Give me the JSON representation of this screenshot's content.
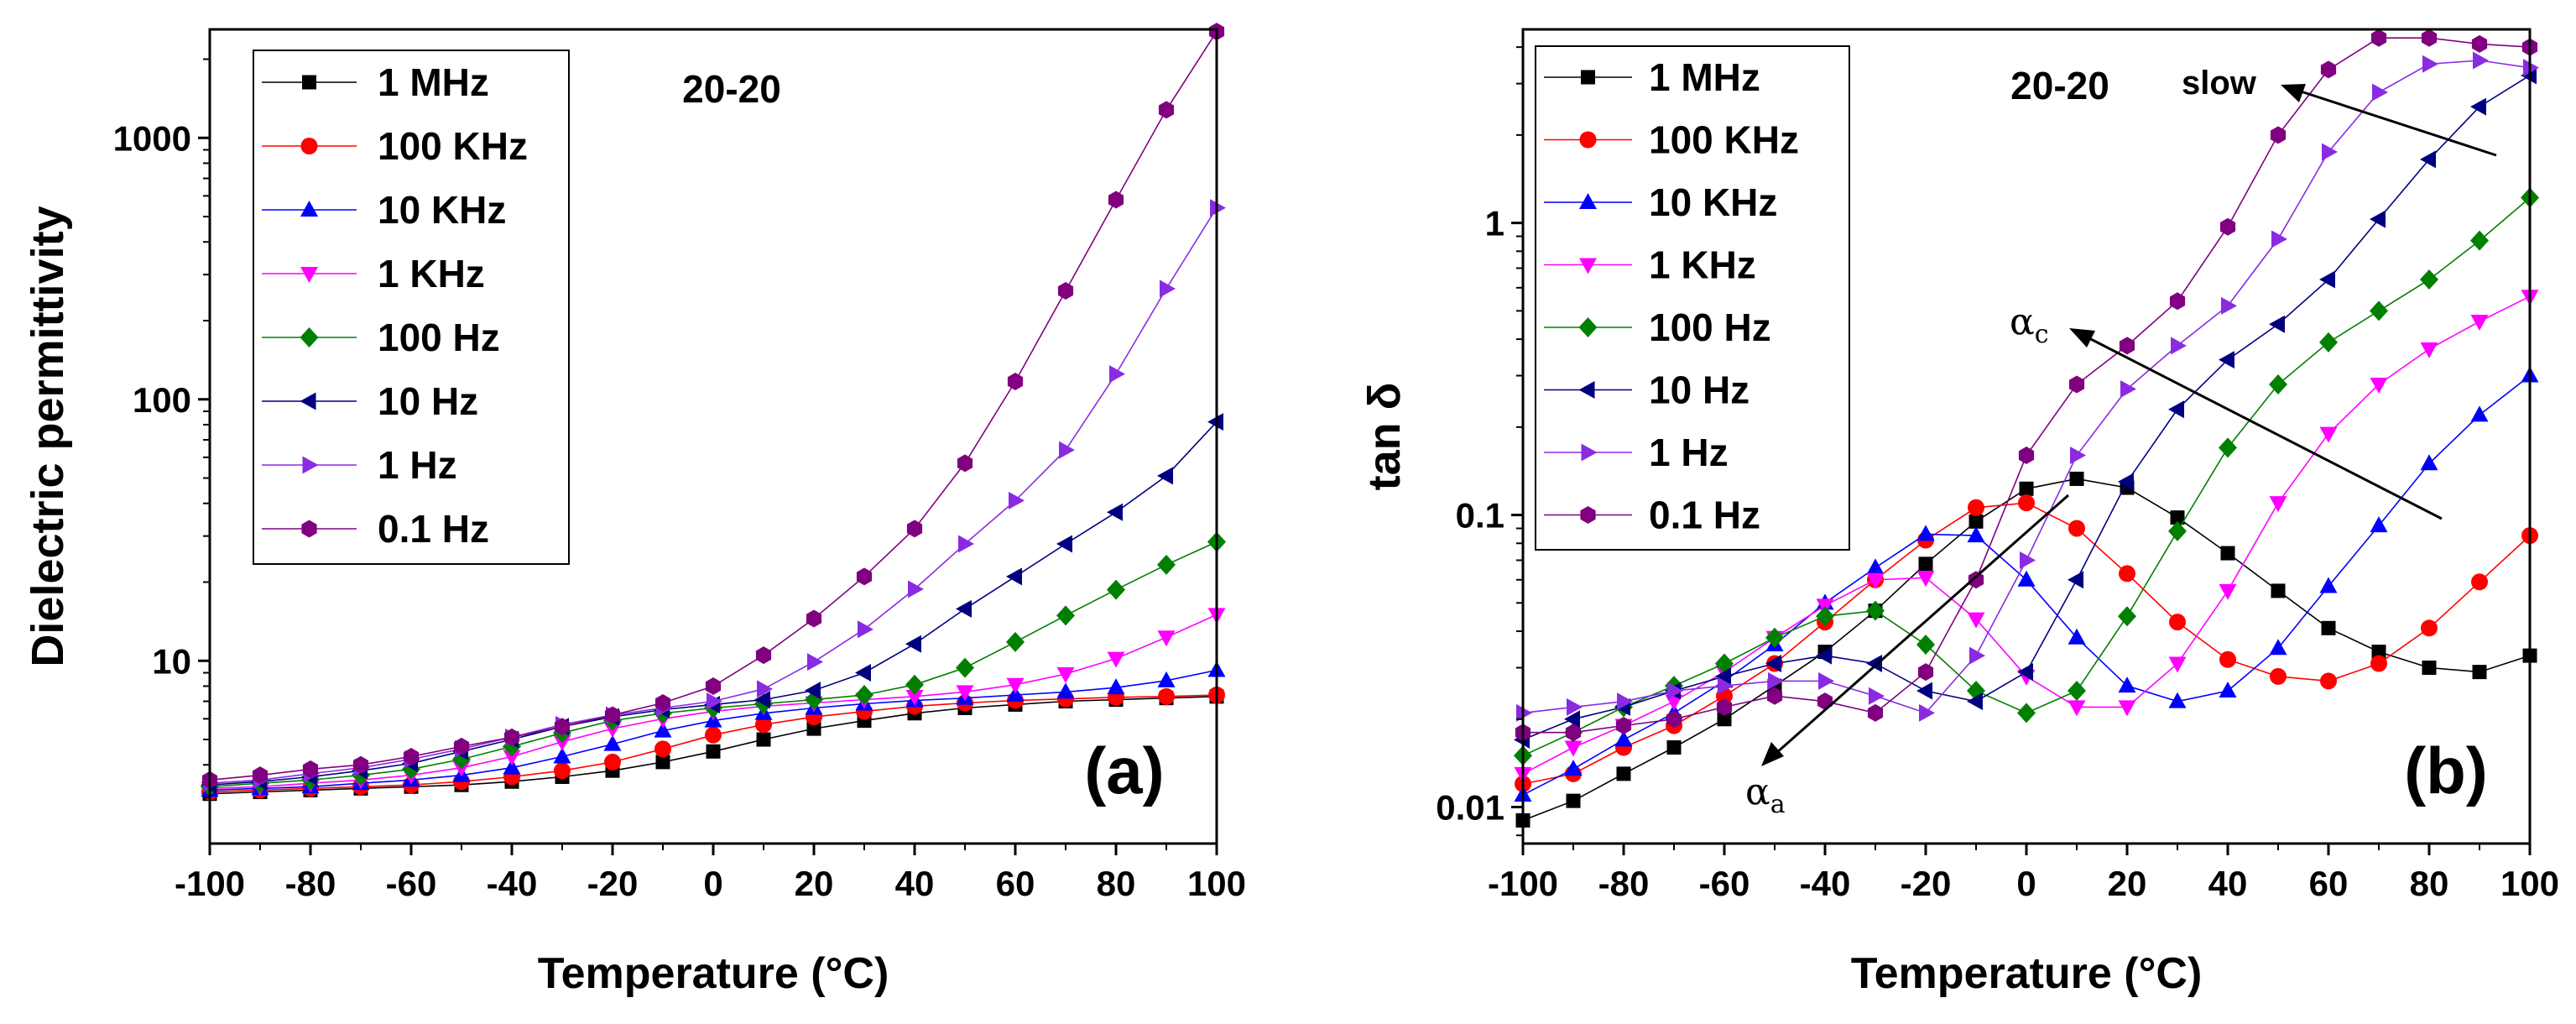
{
  "series_styles": [
    {
      "name": "1 MHz",
      "color": "#000000",
      "marker": "square"
    },
    {
      "name": "100 KHz",
      "color": "#ff0000",
      "marker": "circle"
    },
    {
      "name": "10 KHz",
      "color": "#0000ff",
      "marker": "triangle-up"
    },
    {
      "name": "1 KHz",
      "color": "#ff00ff",
      "marker": "triangle-down"
    },
    {
      "name": "100 Hz",
      "color": "#008000",
      "marker": "diamond"
    },
    {
      "name": "10 Hz",
      "color": "#000080",
      "marker": "triangle-left"
    },
    {
      "name": "1 Hz",
      "color": "#8a2be2",
      "marker": "triangle-right"
    },
    {
      "name": "0.1 Hz",
      "color": "#800080",
      "marker": "hexagon"
    }
  ],
  "chart_data": [
    {
      "type": "line",
      "panel_label": "(a)",
      "annotation": "20-20",
      "xlabel": "Temperature (°C)",
      "ylabel": "Dielectric permittivity",
      "yscale": "log",
      "xlim": [
        -100,
        100
      ],
      "ylim": [
        2,
        2600
      ],
      "xticks": [
        -100,
        -80,
        -60,
        -40,
        -20,
        0,
        20,
        40,
        60,
        80,
        100
      ],
      "xtick_labels": [
        "-100",
        "-80",
        "-60",
        "-40",
        "-20",
        "0",
        "20",
        "40",
        "60",
        "80",
        "100"
      ],
      "yticks": [
        10,
        100,
        1000
      ],
      "ytick_labels": [
        "10",
        "100",
        "1000"
      ],
      "legend_position": "top-left",
      "x": [
        -100,
        -90,
        -80,
        -70,
        -60,
        -50,
        -40,
        -30,
        -20,
        -10,
        0,
        10,
        20,
        30,
        40,
        50,
        60,
        70,
        80,
        90,
        100
      ],
      "series": [
        {
          "name": "1 MHz",
          "values": [
            3.1,
            3.15,
            3.2,
            3.25,
            3.3,
            3.35,
            3.45,
            3.6,
            3.8,
            4.1,
            4.5,
            5.0,
            5.5,
            5.9,
            6.3,
            6.6,
            6.8,
            7.0,
            7.1,
            7.2,
            7.3
          ]
        },
        {
          "name": "100 KHz",
          "values": [
            3.15,
            3.2,
            3.25,
            3.3,
            3.35,
            3.45,
            3.6,
            3.8,
            4.1,
            4.6,
            5.2,
            5.7,
            6.1,
            6.4,
            6.7,
            6.9,
            7.05,
            7.15,
            7.25,
            7.3,
            7.4
          ]
        },
        {
          "name": "10 KHz",
          "values": [
            3.2,
            3.25,
            3.3,
            3.4,
            3.5,
            3.65,
            3.9,
            4.3,
            4.8,
            5.4,
            5.9,
            6.3,
            6.6,
            6.85,
            7.05,
            7.2,
            7.4,
            7.6,
            7.9,
            8.4,
            9.2
          ]
        },
        {
          "name": "1 KHz",
          "values": [
            3.25,
            3.3,
            3.4,
            3.5,
            3.65,
            3.9,
            4.3,
            4.9,
            5.5,
            6.0,
            6.4,
            6.7,
            6.9,
            7.1,
            7.3,
            7.6,
            8.1,
            8.9,
            10.2,
            12.3,
            15.0
          ]
        },
        {
          "name": "100 Hz",
          "values": [
            3.3,
            3.4,
            3.5,
            3.65,
            3.85,
            4.2,
            4.7,
            5.3,
            5.9,
            6.3,
            6.6,
            6.85,
            7.1,
            7.4,
            8.1,
            9.4,
            11.8,
            14.9,
            18.7,
            23.3,
            28.5
          ]
        },
        {
          "name": "10 Hz",
          "values": [
            3.35,
            3.45,
            3.6,
            3.8,
            4.05,
            4.5,
            5.0,
            5.6,
            6.1,
            6.5,
            6.8,
            7.1,
            7.7,
            9.0,
            11.6,
            15.8,
            21.0,
            28.0,
            37.0,
            51.0,
            82.0
          ]
        },
        {
          "name": "1 Hz",
          "values": [
            3.4,
            3.5,
            3.7,
            3.9,
            4.2,
            4.6,
            5.1,
            5.7,
            6.2,
            6.6,
            7.0,
            7.8,
            9.9,
            13.2,
            18.8,
            28.0,
            41.0,
            64.0,
            125.0,
            265.0,
            540.0
          ]
        },
        {
          "name": "0.1 Hz",
          "values": [
            3.5,
            3.65,
            3.85,
            4.0,
            4.3,
            4.7,
            5.1,
            5.6,
            6.2,
            6.9,
            8.0,
            10.5,
            14.5,
            21.0,
            32.0,
            57.0,
            117.0,
            260.0,
            580.0,
            1280.0,
            2550.0
          ]
        }
      ]
    },
    {
      "type": "line",
      "panel_label": "(b)",
      "annotation": "20-20",
      "xlabel": "Temperature (°C)",
      "ylabel": "tan δ",
      "yscale": "log",
      "xlim": [
        -100,
        100
      ],
      "ylim": [
        0.0075,
        4.6
      ],
      "xticks": [
        -100,
        -80,
        -60,
        -40,
        -20,
        0,
        20,
        40,
        60,
        80,
        100
      ],
      "xtick_labels": [
        "-100",
        "-80",
        "-60",
        "-40",
        "-20",
        "0",
        "20",
        "40",
        "60",
        "80",
        "100"
      ],
      "yticks": [
        0.01,
        0.1,
        1
      ],
      "ytick_labels": [
        "0.01",
        "0.1",
        "1"
      ],
      "legend_position": "top-left",
      "arrow_labels": {
        "slow": "slow",
        "alpha_c_base": "α",
        "alpha_c_sub": "c",
        "alpha_a_base": "α",
        "alpha_a_sub": "a"
      },
      "x": [
        -100,
        -90,
        -80,
        -70,
        -60,
        -50,
        -40,
        -30,
        -20,
        -10,
        0,
        10,
        20,
        30,
        40,
        50,
        60,
        70,
        80,
        90,
        100
      ],
      "series": [
        {
          "name": "1 MHz",
          "values": [
            0.009,
            0.0105,
            0.013,
            0.016,
            0.02,
            0.026,
            0.034,
            0.047,
            0.068,
            0.095,
            0.123,
            0.133,
            0.124,
            0.098,
            0.074,
            0.055,
            0.041,
            0.034,
            0.03,
            0.029,
            0.033
          ]
        },
        {
          "name": "100 KHz",
          "values": [
            0.012,
            0.013,
            0.016,
            0.019,
            0.024,
            0.031,
            0.043,
            0.06,
            0.082,
            0.106,
            0.11,
            0.09,
            0.063,
            0.043,
            0.032,
            0.028,
            0.027,
            0.031,
            0.041,
            0.059,
            0.085
          ]
        },
        {
          "name": "10 KHz",
          "values": [
            0.011,
            0.0135,
            0.017,
            0.021,
            0.027,
            0.036,
            0.05,
            0.066,
            0.086,
            0.085,
            0.06,
            0.038,
            0.026,
            0.023,
            0.025,
            0.035,
            0.057,
            0.092,
            0.15,
            0.22,
            0.3
          ]
        },
        {
          "name": "1 KHz",
          "values": [
            0.013,
            0.016,
            0.019,
            0.023,
            0.029,
            0.038,
            0.049,
            0.06,
            0.061,
            0.044,
            0.028,
            0.022,
            0.022,
            0.031,
            0.055,
            0.11,
            0.19,
            0.28,
            0.37,
            0.46,
            0.56
          ]
        },
        {
          "name": "100 Hz",
          "values": [
            0.015,
            0.018,
            0.022,
            0.026,
            0.031,
            0.038,
            0.045,
            0.047,
            0.036,
            0.025,
            0.021,
            0.025,
            0.045,
            0.088,
            0.17,
            0.28,
            0.39,
            0.5,
            0.64,
            0.87,
            1.22
          ]
        },
        {
          "name": "10 Hz",
          "values": [
            0.017,
            0.02,
            0.022,
            0.025,
            0.028,
            0.031,
            0.033,
            0.031,
            0.025,
            0.023,
            0.029,
            0.06,
            0.13,
            0.23,
            0.34,
            0.45,
            0.64,
            1.03,
            1.65,
            2.5,
            3.2
          ]
        },
        {
          "name": "1 Hz",
          "values": [
            0.021,
            0.022,
            0.023,
            0.025,
            0.026,
            0.027,
            0.027,
            0.024,
            0.021,
            0.033,
            0.07,
            0.16,
            0.27,
            0.38,
            0.52,
            0.88,
            1.75,
            2.8,
            3.5,
            3.6,
            3.4
          ]
        },
        {
          "name": "0.1 Hz",
          "values": [
            0.018,
            0.018,
            0.019,
            0.02,
            0.022,
            0.024,
            0.023,
            0.021,
            0.029,
            0.06,
            0.16,
            0.28,
            0.38,
            0.54,
            0.97,
            2.0,
            3.35,
            4.3,
            4.3,
            4.1,
            4.0
          ]
        }
      ]
    }
  ]
}
